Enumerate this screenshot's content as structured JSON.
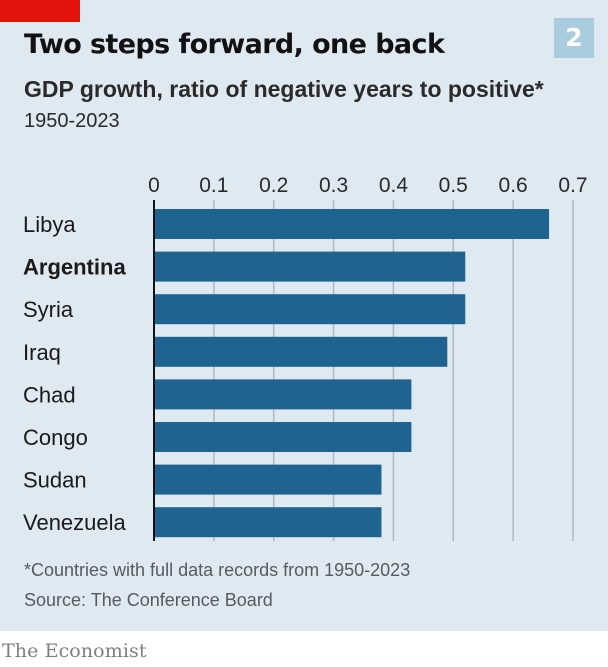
{
  "header": {
    "title": "Two steps forward, one back",
    "chart_number": "2",
    "subtitle": "GDP growth, ratio of negative years to positive*",
    "period": "1950-2023"
  },
  "footer": {
    "footnote": "*Countries with full data records from 1950-2023",
    "source": "Source: The Conference Board",
    "brand": "The Economist"
  },
  "colors": {
    "bar": "#1f6391",
    "panel_background": "#dfe9f1",
    "badge": "#a9ccdf",
    "accent_red": "#e3120b",
    "gridline": "#b0b8bf",
    "axis_line": "#121212"
  },
  "chart_data": {
    "type": "bar",
    "orientation": "horizontal",
    "categories": [
      "Libya",
      "Argentina",
      "Syria",
      "Iraq",
      "Chad",
      "Congo",
      "Sudan",
      "Venezuela"
    ],
    "values": [
      0.66,
      0.52,
      0.52,
      0.49,
      0.43,
      0.43,
      0.38,
      0.38
    ],
    "highlighted_category": "Argentina",
    "xlim": [
      0,
      0.7
    ],
    "xticks": [
      0,
      0.1,
      0.2,
      0.3,
      0.4,
      0.5,
      0.6,
      0.7
    ],
    "xtick_labels": [
      "0",
      "0.1",
      "0.2",
      "0.3",
      "0.4",
      "0.5",
      "0.6",
      "0.7"
    ],
    "axis_position": "top",
    "grid": true,
    "legend": "none"
  }
}
